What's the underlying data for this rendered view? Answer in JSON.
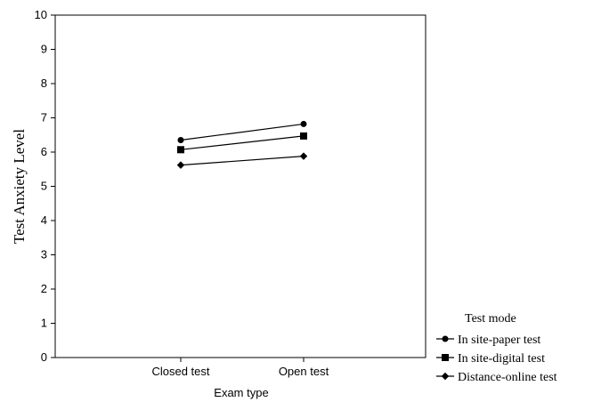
{
  "chart_data": {
    "type": "line",
    "categories": [
      "Closed test",
      "Open test"
    ],
    "xlabel": "Exam type",
    "ylabel": "Test Anxiety Level",
    "ylim": [
      0,
      10
    ],
    "yticks": [
      0,
      1,
      2,
      3,
      4,
      5,
      6,
      7,
      8,
      9,
      10
    ],
    "grid": false,
    "legend": {
      "title": "Test mode",
      "placement": "bottom-right-outside"
    },
    "series": [
      {
        "name": "In site-paper test",
        "marker": "circle",
        "values": [
          6.35,
          6.82
        ]
      },
      {
        "name": "In site-digital test",
        "marker": "square",
        "values": [
          6.07,
          6.47
        ]
      },
      {
        "name": "Distance-online test",
        "marker": "diamond",
        "values": [
          5.62,
          5.88
        ]
      }
    ]
  }
}
